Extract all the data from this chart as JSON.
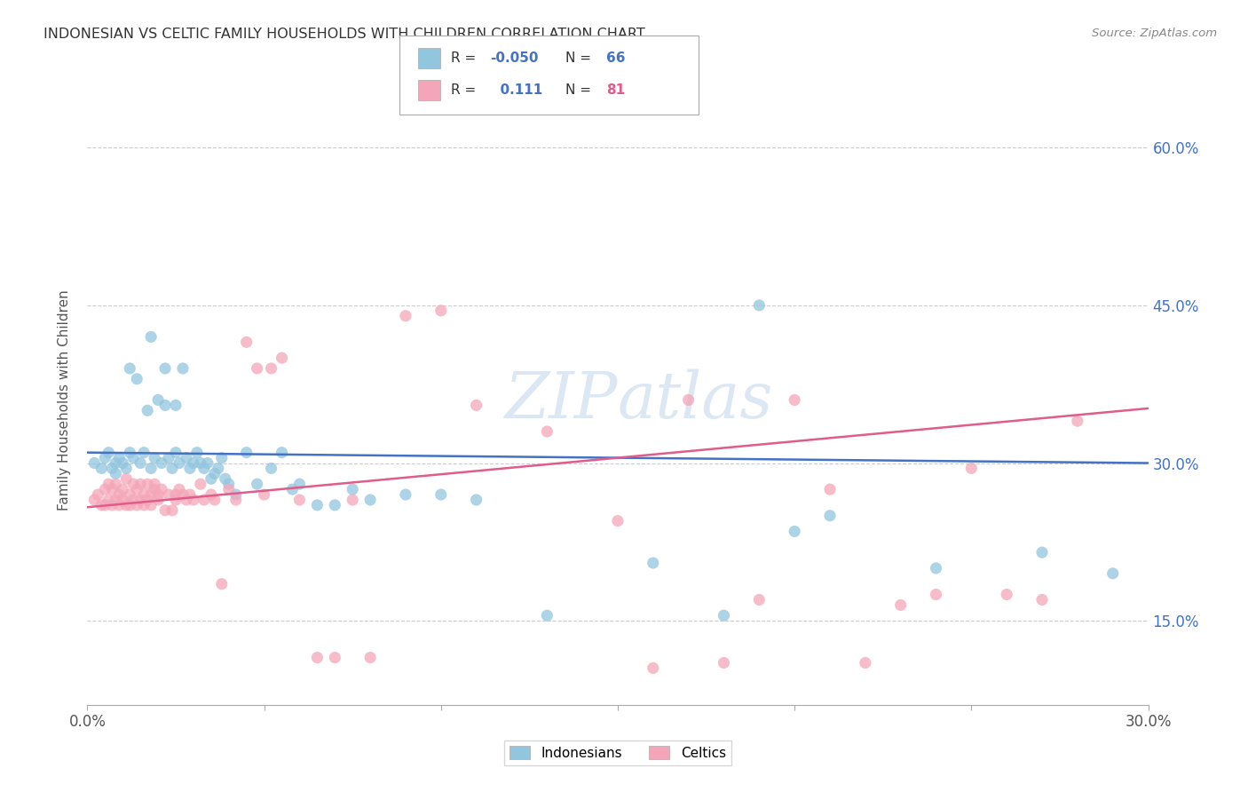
{
  "title": "INDONESIAN VS CELTIC FAMILY HOUSEHOLDS WITH CHILDREN CORRELATION CHART",
  "source": "Source: ZipAtlas.com",
  "ylabel": "Family Households with Children",
  "xlim": [
    0.0,
    0.3
  ],
  "ylim": [
    0.07,
    0.65
  ],
  "xtick_positions": [
    0.0,
    0.05,
    0.1,
    0.15,
    0.2,
    0.25,
    0.3
  ],
  "xticklabels": [
    "0.0%",
    "",
    "",
    "",
    "",
    "",
    "30.0%"
  ],
  "ytick_positions": [
    0.15,
    0.3,
    0.45,
    0.6
  ],
  "yticklabels": [
    "15.0%",
    "30.0%",
    "45.0%",
    "60.0%"
  ],
  "legend_r_blue": "-0.050",
  "legend_n_blue": "66",
  "legend_r_pink": "0.111",
  "legend_n_pink": "81",
  "blue_color": "#92c5de",
  "pink_color": "#f4a6b8",
  "trendline_blue_color": "#4472c4",
  "trendline_pink_color": "#e05c8a",
  "watermark": "ZIPAtlas",
  "blue_x": [
    0.002,
    0.004,
    0.005,
    0.006,
    0.007,
    0.008,
    0.008,
    0.009,
    0.01,
    0.011,
    0.012,
    0.012,
    0.013,
    0.014,
    0.015,
    0.016,
    0.017,
    0.018,
    0.018,
    0.019,
    0.02,
    0.021,
    0.022,
    0.022,
    0.023,
    0.024,
    0.025,
    0.025,
    0.026,
    0.027,
    0.028,
    0.029,
    0.03,
    0.031,
    0.032,
    0.033,
    0.034,
    0.035,
    0.036,
    0.037,
    0.038,
    0.039,
    0.04,
    0.042,
    0.045,
    0.048,
    0.052,
    0.055,
    0.058,
    0.06,
    0.065,
    0.07,
    0.075,
    0.08,
    0.09,
    0.1,
    0.11,
    0.13,
    0.16,
    0.18,
    0.19,
    0.2,
    0.21,
    0.24,
    0.27,
    0.29
  ],
  "blue_y": [
    0.3,
    0.295,
    0.305,
    0.31,
    0.295,
    0.3,
    0.29,
    0.305,
    0.3,
    0.295,
    0.39,
    0.31,
    0.305,
    0.38,
    0.3,
    0.31,
    0.35,
    0.42,
    0.295,
    0.305,
    0.36,
    0.3,
    0.39,
    0.355,
    0.305,
    0.295,
    0.355,
    0.31,
    0.3,
    0.39,
    0.305,
    0.295,
    0.3,
    0.31,
    0.3,
    0.295,
    0.3,
    0.285,
    0.29,
    0.295,
    0.305,
    0.285,
    0.28,
    0.27,
    0.31,
    0.28,
    0.295,
    0.31,
    0.275,
    0.28,
    0.26,
    0.26,
    0.275,
    0.265,
    0.27,
    0.27,
    0.265,
    0.155,
    0.205,
    0.155,
    0.45,
    0.235,
    0.25,
    0.2,
    0.215,
    0.195
  ],
  "pink_x": [
    0.002,
    0.003,
    0.004,
    0.005,
    0.005,
    0.006,
    0.006,
    0.007,
    0.007,
    0.008,
    0.008,
    0.009,
    0.009,
    0.01,
    0.01,
    0.011,
    0.011,
    0.012,
    0.012,
    0.013,
    0.013,
    0.014,
    0.014,
    0.015,
    0.015,
    0.016,
    0.016,
    0.017,
    0.017,
    0.018,
    0.018,
    0.019,
    0.019,
    0.02,
    0.02,
    0.021,
    0.022,
    0.023,
    0.024,
    0.025,
    0.025,
    0.026,
    0.027,
    0.028,
    0.029,
    0.03,
    0.032,
    0.033,
    0.035,
    0.036,
    0.038,
    0.04,
    0.042,
    0.045,
    0.048,
    0.05,
    0.052,
    0.055,
    0.06,
    0.065,
    0.07,
    0.075,
    0.08,
    0.09,
    0.1,
    0.11,
    0.13,
    0.15,
    0.16,
    0.17,
    0.18,
    0.19,
    0.2,
    0.21,
    0.22,
    0.23,
    0.24,
    0.25,
    0.26,
    0.27,
    0.28
  ],
  "pink_y": [
    0.265,
    0.27,
    0.26,
    0.275,
    0.26,
    0.265,
    0.28,
    0.26,
    0.275,
    0.265,
    0.28,
    0.27,
    0.26,
    0.275,
    0.265,
    0.26,
    0.285,
    0.27,
    0.26,
    0.265,
    0.28,
    0.26,
    0.275,
    0.265,
    0.28,
    0.27,
    0.26,
    0.265,
    0.28,
    0.27,
    0.26,
    0.275,
    0.28,
    0.265,
    0.27,
    0.275,
    0.255,
    0.27,
    0.255,
    0.27,
    0.265,
    0.275,
    0.27,
    0.265,
    0.27,
    0.265,
    0.28,
    0.265,
    0.27,
    0.265,
    0.185,
    0.275,
    0.265,
    0.415,
    0.39,
    0.27,
    0.39,
    0.4,
    0.265,
    0.115,
    0.115,
    0.265,
    0.115,
    0.44,
    0.445,
    0.355,
    0.33,
    0.245,
    0.105,
    0.36,
    0.11,
    0.17,
    0.36,
    0.275,
    0.11,
    0.165,
    0.175,
    0.295,
    0.175,
    0.17,
    0.34
  ]
}
